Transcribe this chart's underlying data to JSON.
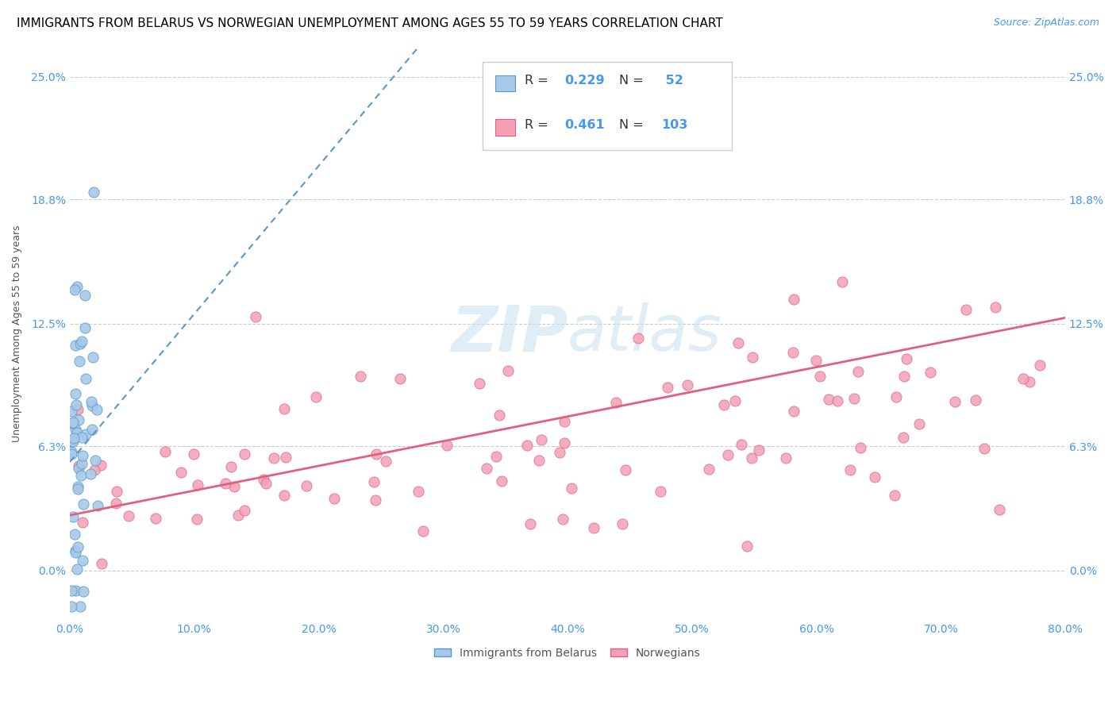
{
  "title": "IMMIGRANTS FROM BELARUS VS NORWEGIAN UNEMPLOYMENT AMONG AGES 55 TO 59 YEARS CORRELATION CHART",
  "source": "Source: ZipAtlas.com",
  "xlabel_ticks": [
    "0.0%",
    "10.0%",
    "20.0%",
    "30.0%",
    "40.0%",
    "50.0%",
    "60.0%",
    "70.0%",
    "80.0%"
  ],
  "xlabel_vals": [
    0.0,
    0.1,
    0.2,
    0.3,
    0.4,
    0.5,
    0.6,
    0.7,
    0.8
  ],
  "ylabel_ticks_labels": [
    "0.0%",
    "6.3%",
    "12.5%",
    "18.8%",
    "25.0%"
  ],
  "ylabel_ticks_vals": [
    0.0,
    0.063,
    0.125,
    0.188,
    0.25
  ],
  "xmin": 0.0,
  "xmax": 0.8,
  "ymin": -0.025,
  "ymax": 0.265,
  "color_belarus": "#a8c8e8",
  "color_norway": "#f4a0b4",
  "color_trendline_belarus": "#5599cc",
  "color_trendline_norway": "#e06080",
  "color_axis_labels": "#4499ee",
  "watermark_zip": "ZIP",
  "watermark_atlas": "atlas",
  "title_fontsize": 11,
  "axis_label_fontsize": 9,
  "tick_fontsize": 10,
  "legend_fontsize": 12
}
